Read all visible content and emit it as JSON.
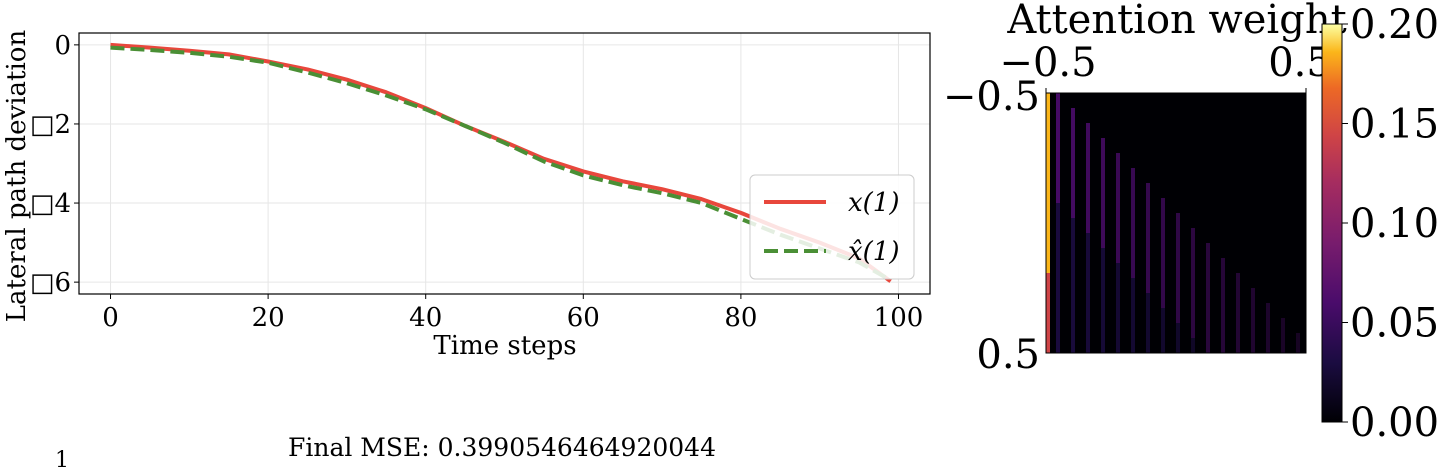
{
  "chart_data": [
    {
      "type": "line",
      "title": "",
      "xlabel": "Time steps",
      "ylabel": "Lateral path deviation",
      "xlim": [
        -4,
        104
      ],
      "ylim": [
        -6.3,
        0.3
      ],
      "xticks": [
        0,
        20,
        40,
        60,
        80,
        100
      ],
      "xtick_labels": [
        "0",
        "20",
        "40",
        "60",
        "80",
        "100"
      ],
      "yticks": [
        0,
        -2,
        -4,
        -6
      ],
      "ytick_labels": [
        "0",
        "□2",
        "□4",
        "□6"
      ],
      "grid": true,
      "legend_position": "lower right",
      "series": [
        {
          "name": "x(1)",
          "color": "#e8473c",
          "style": "solid",
          "x": [
            0,
            5,
            10,
            15,
            20,
            25,
            30,
            35,
            40,
            45,
            50,
            55,
            60,
            65,
            70,
            75,
            80,
            85,
            90,
            95,
            99
          ],
          "y": [
            0.0,
            -0.07,
            -0.15,
            -0.24,
            -0.42,
            -0.62,
            -0.88,
            -1.2,
            -1.6,
            -2.05,
            -2.45,
            -2.88,
            -3.2,
            -3.45,
            -3.65,
            -3.9,
            -4.25,
            -4.65,
            -5.0,
            -5.4,
            -5.98
          ]
        },
        {
          "name": "x̂(1)",
          "color": "#4a8f35",
          "style": "dashed",
          "x": [
            0,
            5,
            10,
            15,
            20,
            25,
            30,
            35,
            40,
            45,
            50,
            55,
            60,
            65,
            70,
            75,
            80,
            85,
            90,
            95,
            99
          ],
          "y": [
            -0.07,
            -0.13,
            -0.2,
            -0.3,
            -0.45,
            -0.7,
            -0.97,
            -1.28,
            -1.63,
            -2.05,
            -2.48,
            -2.95,
            -3.3,
            -3.55,
            -3.75,
            -4.0,
            -4.4,
            -4.8,
            -5.15,
            -5.5,
            -5.95
          ]
        }
      ]
    },
    {
      "type": "heatmap",
      "title": "Attention weight",
      "xlim": [
        -0.5,
        0.5
      ],
      "ylim": [
        -0.5,
        0.5
      ],
      "xtick_labels": [
        "−0.5",
        "0.5"
      ],
      "ytick_labels": [
        "−0.5",
        "0.5"
      ],
      "colormap": "inferno",
      "colorbar_range": [
        0.0,
        0.2
      ],
      "colorbar_ticks": [
        "0.00",
        "0.05",
        "0.10",
        "0.15",
        "0.20"
      ],
      "structure": "lower-triangular; bright left column (~0.15-0.2), diagonal stripes ~0.05"
    }
  ],
  "footer": {
    "mse_text": "Final MSE: 0.3990546464920044",
    "stray_text": "1"
  }
}
